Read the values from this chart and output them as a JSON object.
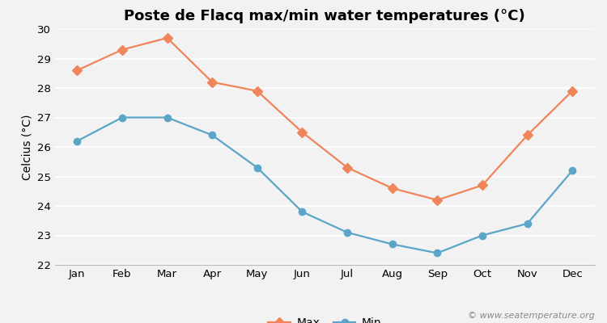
{
  "title": "Poste de Flacq max/min water temperatures (°C)",
  "ylabel": "Celcius (°C)",
  "months": [
    "Jan",
    "Feb",
    "Mar",
    "Apr",
    "May",
    "Jun",
    "Jul",
    "Aug",
    "Sep",
    "Oct",
    "Nov",
    "Dec"
  ],
  "max_temps": [
    28.6,
    29.3,
    29.7,
    28.2,
    27.9,
    26.5,
    25.3,
    24.6,
    24.2,
    24.7,
    26.4,
    27.9
  ],
  "min_temps": [
    26.2,
    27.0,
    27.0,
    26.4,
    25.3,
    23.8,
    23.1,
    22.7,
    22.4,
    23.0,
    23.4,
    25.2
  ],
  "max_color": "#f0845a",
  "min_color": "#5aa5c8",
  "background_color": "#f2f2f2",
  "plot_bg_color": "#f2f2f2",
  "ylim": [
    22,
    30
  ],
  "yticks": [
    22,
    23,
    24,
    25,
    26,
    27,
    28,
    29,
    30
  ],
  "legend_labels": [
    "Max",
    "Min"
  ],
  "watermark": "© www.seatemperature.org",
  "title_fontsize": 13,
  "axis_label_fontsize": 10,
  "tick_fontsize": 9.5,
  "legend_fontsize": 10,
  "line_width": 1.6,
  "max_marker": "D",
  "min_marker": "o",
  "marker_size": 6
}
